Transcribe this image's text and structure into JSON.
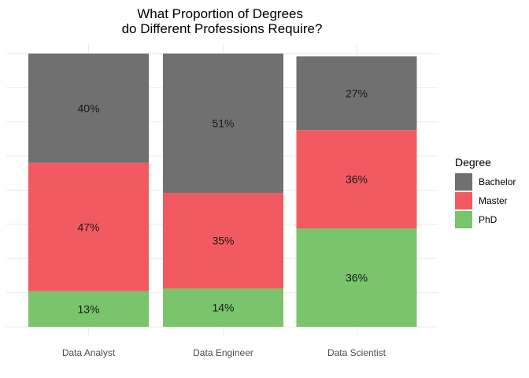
{
  "chart_data": {
    "type": "bar",
    "stacked": true,
    "title": "What Proportion of Degrees\ndo Different Professions Require?",
    "xlabel": "",
    "ylabel": "",
    "categories": [
      "Data Analyst",
      "Data Engineer",
      "Data Scientist"
    ],
    "series": [
      {
        "name": "PhD",
        "values": [
          13,
          14,
          36
        ],
        "labels": [
          "13%",
          "14%",
          "36%"
        ]
      },
      {
        "name": "Master",
        "values": [
          47,
          35,
          36
        ],
        "labels": [
          "47%",
          "35%",
          "36%"
        ]
      },
      {
        "name": "Bachelor",
        "values": [
          40,
          51,
          27
        ],
        "labels": [
          "40%",
          "51%",
          "27%"
        ]
      }
    ],
    "stack_order_bottom_to_top": [
      "PhD",
      "Master",
      "Bachelor"
    ],
    "colors": {
      "Bachelor": "#707070",
      "Master": "#f25a62",
      "PhD": "#7ac46c"
    },
    "legend": {
      "title": "Degree",
      "placement": "right",
      "items": [
        "Bachelor",
        "Master",
        "PhD"
      ]
    },
    "ylim": [
      0,
      100
    ],
    "y_axis_labels_shown": false,
    "grid": true
  }
}
